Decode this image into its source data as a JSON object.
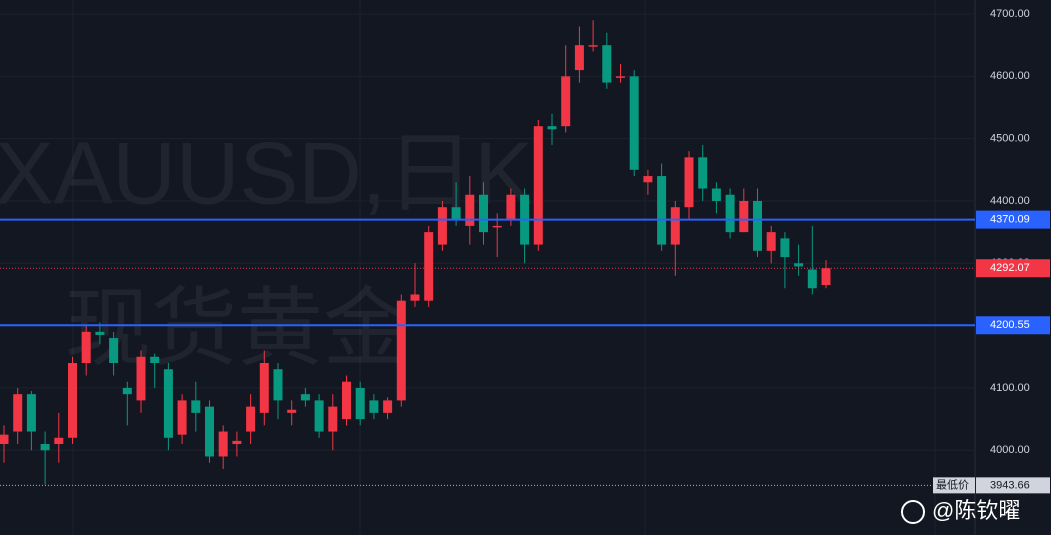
{
  "chart_data": {
    "type": "candlestick",
    "watermark_symbol": "XAUUSD,日K",
    "watermark_name": "现货黄金",
    "credit": "@陈钦曜",
    "up_color": "#f23645",
    "down_color": "#089981",
    "open": [
      4010,
      4030,
      4090,
      4010,
      4010,
      4020,
      4140,
      4190,
      4180,
      4100,
      4080,
      4150,
      4130,
      4025,
      4080,
      4070,
      3990,
      4010,
      4030,
      4060,
      4130,
      4060,
      4090,
      4080,
      4030,
      4050,
      4100,
      4080,
      4060,
      4080,
      4240,
      4240,
      4330,
      4390,
      4360,
      4410,
      4360,
      4370,
      4410,
      4330,
      4520,
      4520,
      4610,
      4650,
      4650,
      4600,
      4600,
      4430,
      4440,
      4330,
      4390,
      4470,
      4420,
      4410,
      4350,
      4400,
      4320,
      4340,
      4300,
      4290,
      4265
    ],
    "high": [
      4040,
      4100,
      4095,
      4030,
      4060,
      4150,
      4200,
      4205,
      4190,
      4110,
      4160,
      4155,
      4140,
      4090,
      4110,
      4080,
      4040,
      4030,
      4090,
      4160,
      4140,
      4080,
      4100,
      4090,
      4090,
      4120,
      4110,
      4090,
      4085,
      4250,
      4300,
      4360,
      4400,
      4430,
      4440,
      4430,
      4380,
      4420,
      4420,
      4530,
      4540,
      4650,
      4680,
      4690,
      4670,
      4620,
      4610,
      4450,
      4460,
      4400,
      4480,
      4490,
      4430,
      4420,
      4420,
      4420,
      4360,
      4350,
      4330,
      4360,
      4305
    ],
    "low": [
      3980,
      4010,
      4000,
      3945,
      3980,
      4010,
      4120,
      4170,
      4120,
      4040,
      4060,
      4100,
      4000,
      4010,
      4030,
      3980,
      3970,
      3990,
      4010,
      4040,
      4050,
      4040,
      4070,
      4020,
      4000,
      4040,
      4040,
      4050,
      4050,
      4070,
      4230,
      4230,
      4320,
      4360,
      4330,
      4330,
      4310,
      4360,
      4300,
      4320,
      4490,
      4510,
      4590,
      4640,
      4580,
      4590,
      4440,
      4410,
      4320,
      4280,
      4370,
      4400,
      4380,
      4340,
      4350,
      4310,
      4300,
      4260,
      4280,
      4250,
      4260
    ],
    "close": [
      4025,
      4090,
      4030,
      4000,
      4020,
      4140,
      4190,
      4185,
      4140,
      4090,
      4150,
      4140,
      4020,
      4080,
      4060,
      3990,
      4030,
      4015,
      4070,
      4140,
      4080,
      4065,
      4080,
      4030,
      4070,
      4110,
      4050,
      4060,
      4080,
      4240,
      4250,
      4350,
      4390,
      4370,
      4410,
      4350,
      4360,
      4410,
      4330,
      4520,
      4515,
      4600,
      4650,
      4650,
      4590,
      4600,
      4450,
      4440,
      4330,
      4390,
      4470,
      4420,
      4400,
      4350,
      4400,
      4320,
      4350,
      4310,
      4295,
      4260,
      4292.07
    ],
    "ylim": [
      3864,
      4722.5
    ],
    "yticks": [
      {
        "value": 4000,
        "label": "4000.00"
      },
      {
        "value": 4100,
        "label": "4100.00"
      },
      {
        "value": 4200,
        "label": "4200.00"
      },
      {
        "value": 4300,
        "label": "4300.00"
      },
      {
        "value": 4400,
        "label": "4400.00"
      },
      {
        "value": 4500,
        "label": "4500.00"
      },
      {
        "value": 4600,
        "label": "4600.00"
      },
      {
        "value": 4700,
        "label": "4700.00"
      }
    ],
    "grid": true,
    "levels": [
      {
        "value": 4370.09,
        "color": "#2962ff"
      },
      {
        "value": 4200.55,
        "color": "#2962ff"
      }
    ],
    "last_price": 4292.07,
    "low_label": "最低价",
    "low_value": 3943.66
  }
}
